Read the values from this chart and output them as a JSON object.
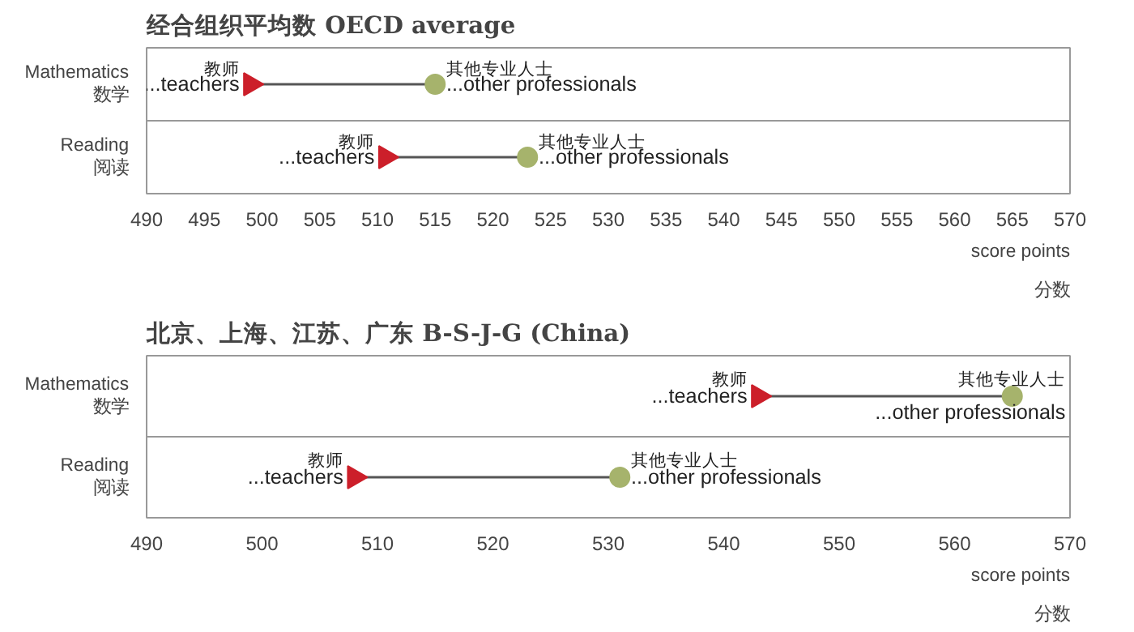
{
  "chart_data": [
    {
      "type": "scatter",
      "orientation": "horizontal",
      "title": "经合组织平均数   OECD average",
      "xlabel": "score points\n分数",
      "categories": [
        "Mathematics\n数学",
        "Reading\n阅读"
      ],
      "xlim": [
        490,
        570
      ],
      "xticks": [
        490,
        495,
        500,
        505,
        510,
        515,
        520,
        525,
        530,
        535,
        540,
        545,
        550,
        555,
        560,
        565,
        570
      ],
      "grid": "y",
      "series": [
        {
          "name": "教师\n...teachers",
          "color": "#cc1f2a",
          "marker": "triangle",
          "values": [
            499,
            510.7
          ]
        },
        {
          "name": "其他专业人士\n...other professionals",
          "color": "#a6b36c",
          "marker": "circle",
          "values": [
            515,
            523
          ]
        }
      ]
    },
    {
      "type": "scatter",
      "orientation": "horizontal",
      "title": "北京、上海、江苏、广东   B-S-J-G (China)",
      "xlabel": "score points\n分数",
      "categories": [
        "Mathematics\n数学",
        "Reading\n阅读"
      ],
      "xlim": [
        490,
        570
      ],
      "xticks": [
        490,
        500,
        510,
        520,
        530,
        540,
        550,
        560,
        570
      ],
      "grid": "y",
      "series": [
        {
          "name": "教师\n...teachers",
          "color": "#cc1f2a",
          "marker": "triangle",
          "values": [
            543,
            508
          ]
        },
        {
          "name": "其他专业人士\n...other professionals",
          "color": "#a6b36c",
          "marker": "circle",
          "values": [
            565,
            531
          ]
        }
      ]
    }
  ]
}
